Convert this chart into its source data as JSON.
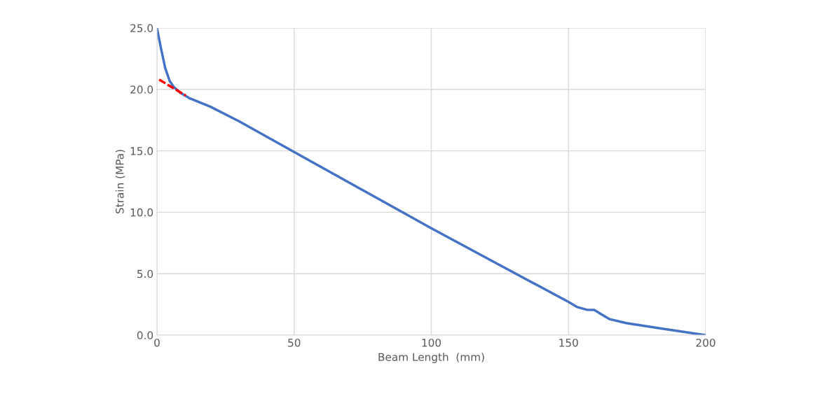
{
  "chart_data": {
    "type": "line",
    "xlabel": "Beam Length  (mm)",
    "ylabel": "Strain (MPa)",
    "series": [
      {
        "color": "#4472c4",
        "x": [
          0,
          1.5,
          3,
          4.6,
          6.1,
          8.7,
          11.7,
          19.4,
          30,
          50,
          75,
          100,
          125,
          150,
          153,
          156.6,
          159.4,
          162,
          165,
          171,
          185,
          200
        ],
        "values": [
          25.0,
          23.3,
          21.75,
          20.7,
          20.2,
          19.7,
          19.3,
          18.6,
          17.4,
          14.9,
          11.8,
          8.7,
          5.7,
          2.7,
          2.3,
          2.07,
          2.05,
          1.7,
          1.3,
          0.98,
          0.5,
          0.0
        ]
      },
      {
        "color": "#ff0000",
        "line_style": "dashed",
        "x": [
          0.8,
          10.5
        ],
        "values": [
          20.8,
          19.5
        ]
      }
    ],
    "xlim": [
      0,
      200
    ],
    "xticks": [
      0,
      50,
      100,
      150,
      200
    ],
    "ylim": [
      0,
      25
    ],
    "yticks": [
      {
        "value": 0,
        "label": "0.0"
      },
      {
        "value": 5,
        "label": "5.0"
      },
      {
        "value": 10,
        "label": "10.0"
      },
      {
        "value": 15,
        "label": "15.0"
      },
      {
        "value": 20,
        "label": "20.0"
      },
      {
        "value": 25,
        "label": "25.0"
      }
    ],
    "grid": true
  }
}
